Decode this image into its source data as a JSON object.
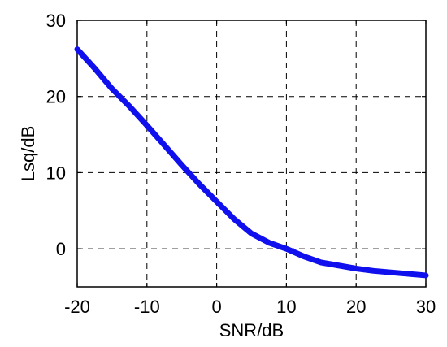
{
  "chart_data": {
    "type": "line",
    "title": "",
    "xlabel": "SNR/dB",
    "ylabel": "Lsq/dB",
    "xlim": [
      -20,
      30
    ],
    "ylim": [
      -5,
      30
    ],
    "xticks": [
      -20,
      -10,
      0,
      10,
      20,
      30
    ],
    "yticks": [
      0,
      10,
      20,
      30
    ],
    "grid": true,
    "grid_style": "dashed",
    "series": [
      {
        "color": "#1010ee",
        "x": [
          -20,
          -17.5,
          -15,
          -12.5,
          -10,
          -7.5,
          -5,
          -2.5,
          0,
          2.5,
          5,
          7.5,
          10,
          12.5,
          15,
          17.5,
          20,
          22.5,
          25,
          27.5,
          30
        ],
        "y": [
          26.2,
          23.7,
          21.0,
          18.7,
          16.2,
          13.6,
          11.0,
          8.5,
          6.2,
          3.9,
          2.0,
          0.8,
          0.0,
          -1.0,
          -1.8,
          -2.2,
          -2.6,
          -2.9,
          -3.1,
          -3.3,
          -3.5
        ]
      }
    ]
  }
}
